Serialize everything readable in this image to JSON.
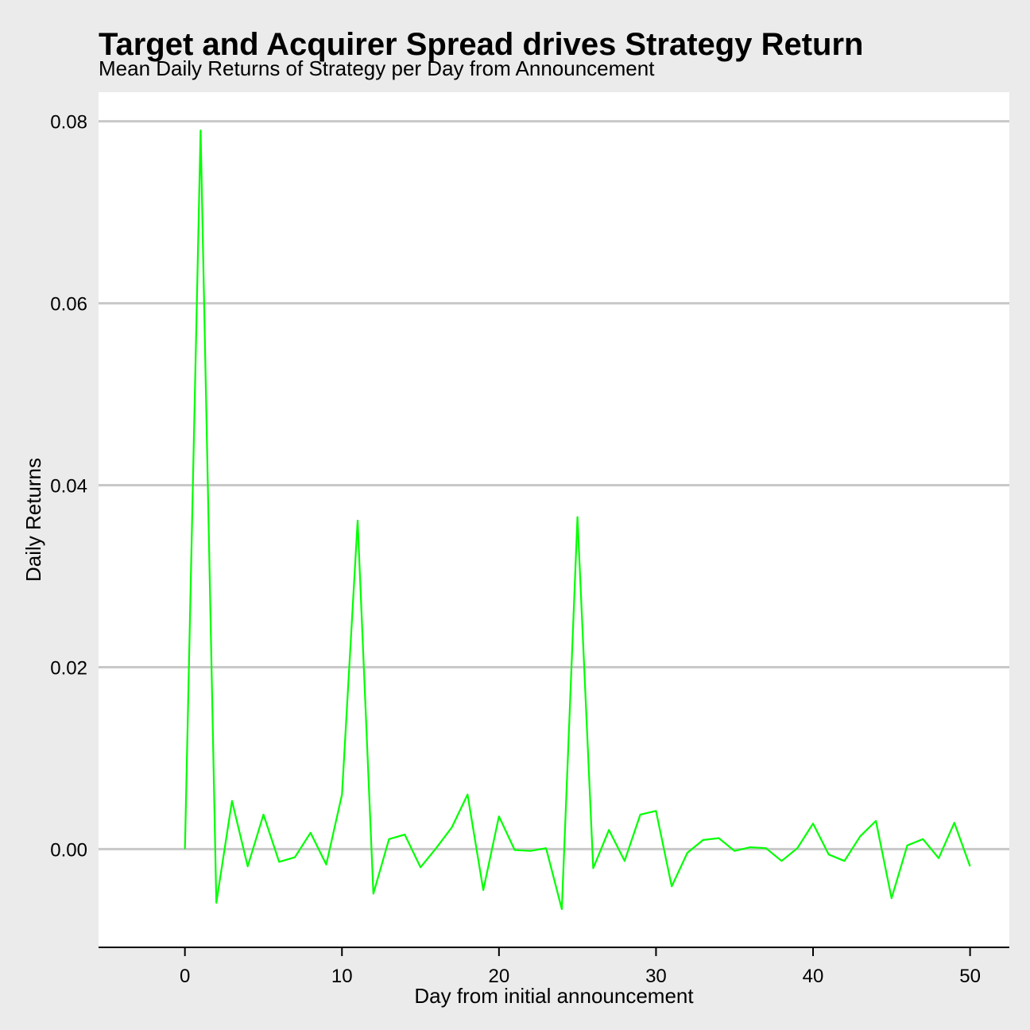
{
  "chart_data": {
    "type": "line",
    "title": "Target and Acquirer Spread drives Strategy Return",
    "subtitle": "Mean Daily Returns of Strategy per Day from Announcement",
    "xlabel": "Day from initial announcement",
    "ylabel": "Daily Returns",
    "xlim": [
      -5.5,
      52.5
    ],
    "ylim": [
      -0.0108,
      0.0832
    ],
    "x_ticks": [
      0,
      10,
      20,
      30,
      40,
      50
    ],
    "x_tick_labels": [
      "0",
      "10",
      "20",
      "30",
      "40",
      "50"
    ],
    "y_ticks": [
      0.0,
      0.02,
      0.04,
      0.06,
      0.08
    ],
    "y_tick_labels": [
      "0.00",
      "0.02",
      "0.04",
      "0.06",
      "0.08"
    ],
    "grid": "horizontal-major",
    "legend": "none",
    "colors": {
      "line": "#00ff00",
      "panel": "#ffffff",
      "background": "#ebebeb",
      "grid": "#c8c8c8"
    },
    "series": [
      {
        "x": [
          0,
          1,
          2,
          3,
          4,
          5,
          6,
          7,
          8,
          9,
          10,
          11,
          12,
          13,
          14,
          15,
          16,
          17,
          18,
          19,
          20,
          21,
          22,
          23,
          24,
          25,
          26,
          27,
          28,
          29,
          30,
          31,
          32,
          33,
          34,
          35,
          36,
          37,
          38,
          39,
          40,
          41,
          42,
          43,
          44,
          45,
          46,
          47,
          48,
          49,
          50
        ],
        "values": [
          0.0,
          0.079,
          -0.0059,
          0.0053,
          -0.0019,
          0.0038,
          -0.0014,
          -0.0009,
          0.0018,
          -0.0017,
          0.006,
          0.0361,
          -0.0049,
          0.0011,
          0.0016,
          -0.002,
          0.0001,
          0.0024,
          0.006,
          -0.0045,
          0.0036,
          -0.0001,
          -0.0002,
          0.0001,
          -0.0066,
          0.0365,
          -0.0021,
          0.0021,
          -0.0013,
          0.0038,
          0.0042,
          -0.0041,
          -0.0004,
          0.001,
          0.0012,
          -0.0002,
          0.0002,
          0.0001,
          -0.0013,
          0.0001,
          0.0028,
          -0.0006,
          -0.0013,
          0.0014,
          0.0031,
          -0.0054,
          0.0004,
          0.0011,
          -0.001,
          0.0029,
          -0.0019
        ]
      }
    ]
  }
}
